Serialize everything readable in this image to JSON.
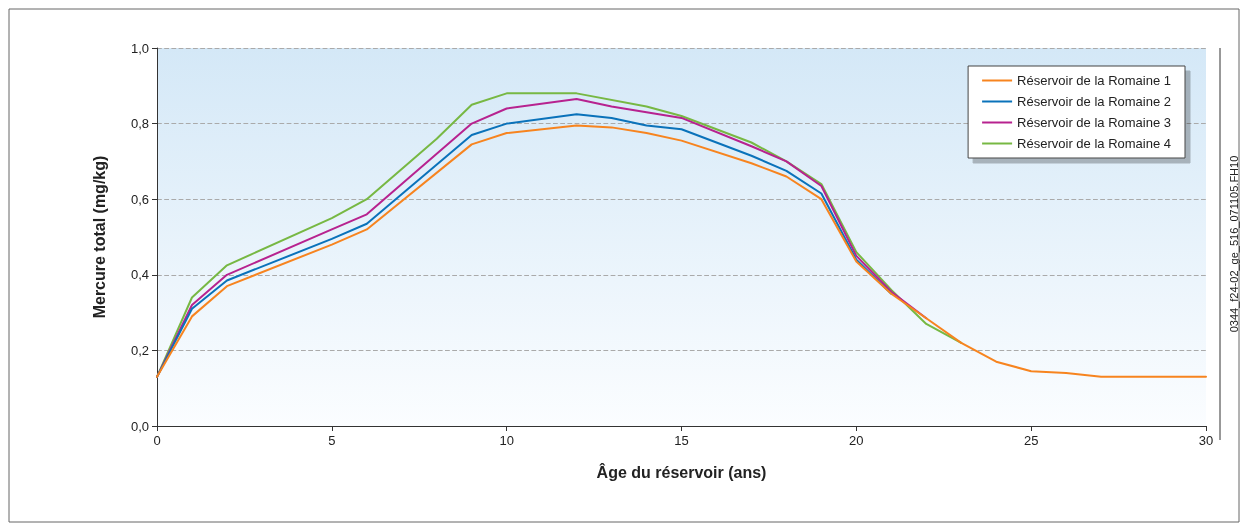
{
  "chart_data": {
    "type": "line",
    "xlabel": "Âge du réservoir (ans)",
    "ylabel": "Mercure total (mg/kg)",
    "x": [
      0,
      1,
      2,
      5,
      6,
      9,
      10,
      12,
      13,
      14,
      15,
      17,
      18,
      19,
      20,
      21,
      22,
      23,
      24,
      25,
      26,
      27,
      30
    ],
    "series": [
      {
        "name": "Réservoir de la Romaine 1",
        "color": "#f7841f",
        "values": [
          0.13,
          0.29,
          0.37,
          0.48,
          0.52,
          0.745,
          0.775,
          0.795,
          0.79,
          0.775,
          0.755,
          0.695,
          0.66,
          0.6,
          0.435,
          0.35,
          0.285,
          0.22,
          0.17,
          0.145,
          0.14,
          0.13,
          0.13
        ]
      },
      {
        "name": "Réservoir de la Romaine 2",
        "color": "#0a72ba",
        "values": [
          0.13,
          0.31,
          0.385,
          0.495,
          0.535,
          0.77,
          0.8,
          0.825,
          0.815,
          0.795,
          0.785,
          0.715,
          0.675,
          0.615,
          0.44,
          0.35,
          null,
          null,
          null,
          null,
          null,
          null,
          null
        ]
      },
      {
        "name": "Réservoir de la Romaine 3",
        "color": "#b7228f",
        "values": [
          0.13,
          0.32,
          0.4,
          0.52,
          0.56,
          0.8,
          0.84,
          0.865,
          0.845,
          0.83,
          0.815,
          0.74,
          0.7,
          0.635,
          0.45,
          0.355,
          0.285,
          null,
          null,
          null,
          null,
          null,
          null
        ]
      },
      {
        "name": "Réservoir de la Romaine 4",
        "color": "#77b843",
        "x": [
          0,
          1,
          2,
          5,
          6,
          7,
          8,
          9,
          10,
          12,
          14,
          15,
          17,
          18,
          19,
          20,
          21,
          22,
          23
        ],
        "values": [
          0.13,
          0.34,
          0.425,
          0.55,
          0.6,
          0.68,
          0.76,
          0.85,
          0.88,
          0.88,
          0.845,
          0.82,
          0.75,
          0.7,
          0.64,
          0.46,
          0.36,
          0.27,
          0.22
        ]
      }
    ],
    "xlim": [
      0,
      30
    ],
    "xticks": [
      0,
      5,
      10,
      15,
      20,
      25,
      30
    ],
    "ylim": [
      0,
      1
    ],
    "yticks": [
      {
        "value": 0,
        "label": "0,0"
      },
      {
        "value": 0.2,
        "label": "0,2"
      },
      {
        "value": 0.4,
        "label": "0,4"
      },
      {
        "value": 0.6,
        "label": "0,6"
      },
      {
        "value": 0.8,
        "label": "0,8"
      },
      {
        "value": 1,
        "label": "1,0"
      }
    ],
    "grid": "y",
    "legend": "top right",
    "line_style": "solid",
    "marker": "none",
    "annotations": [
      "0344_f24-02_ge_516_071105.FH10"
    ]
  }
}
